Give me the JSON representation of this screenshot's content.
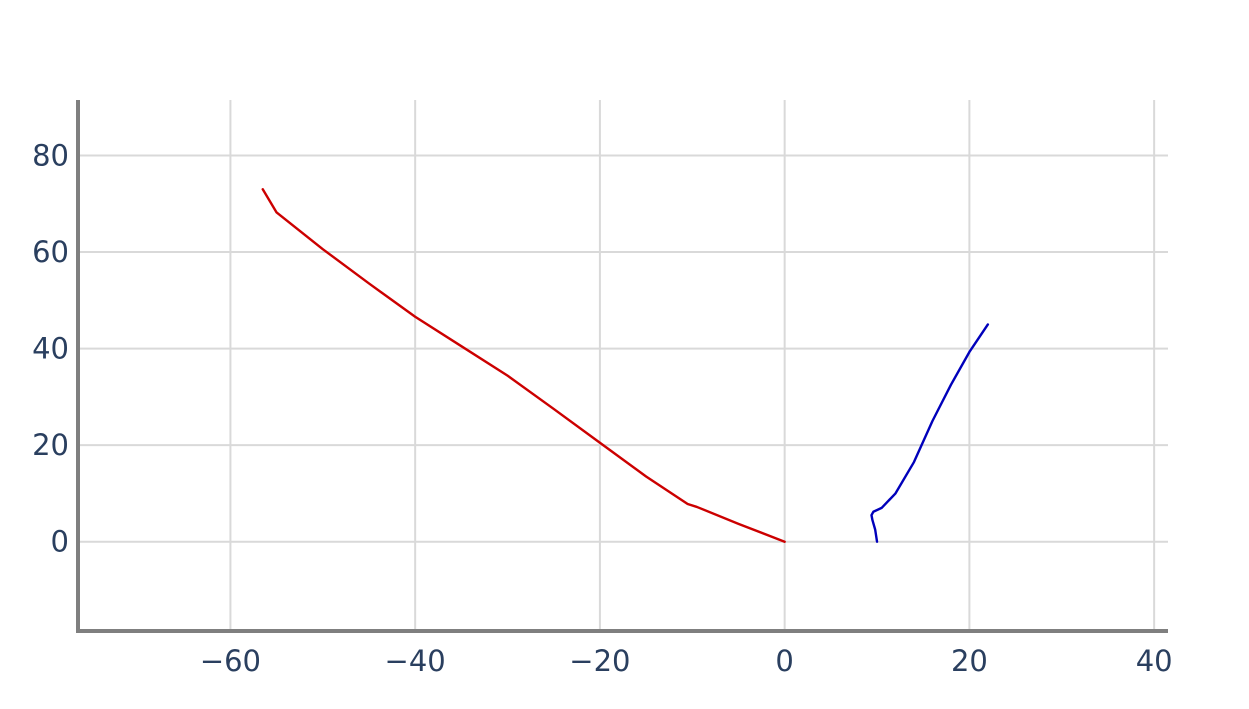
{
  "chart_data": {
    "type": "line",
    "title": "",
    "xlabel": "",
    "ylabel": "",
    "xlim": [
      -76.5,
      41.5
    ],
    "ylim": [
      -18.5,
      91.5
    ],
    "x_ticks": [
      -60,
      -40,
      -20,
      0,
      20,
      40
    ],
    "y_ticks": [
      0,
      20,
      40,
      60,
      80
    ],
    "x_tick_labels": [
      "−60",
      "−40",
      "−20",
      "0",
      "20",
      "40"
    ],
    "y_tick_labels": [
      "0",
      "20",
      "40",
      "60",
      "80"
    ],
    "grid": true,
    "legend": "none",
    "series": [
      {
        "color": "#cc0000",
        "x": [
          0,
          -5,
          -9.5,
          -10.5,
          -15,
          -20,
          -25,
          -30,
          -35,
          -40,
          -45,
          -50,
          -55,
          -56.5
        ],
        "y": [
          0,
          3.7,
          7.2,
          7.8,
          13.5,
          20.5,
          27.5,
          34.4,
          40.5,
          46.6,
          53.5,
          60.6,
          68.2,
          73.0
        ]
      },
      {
        "color": "#0000bb",
        "x": [
          10,
          9.8,
          9.5,
          9.4,
          9.6,
          10.5,
          12,
          14,
          16,
          18,
          20,
          22
        ],
        "y": [
          0,
          2.5,
          4.5,
          5.5,
          6.2,
          7.0,
          10.0,
          16.5,
          25.0,
          32.5,
          39.3,
          45.0
        ]
      }
    ]
  }
}
